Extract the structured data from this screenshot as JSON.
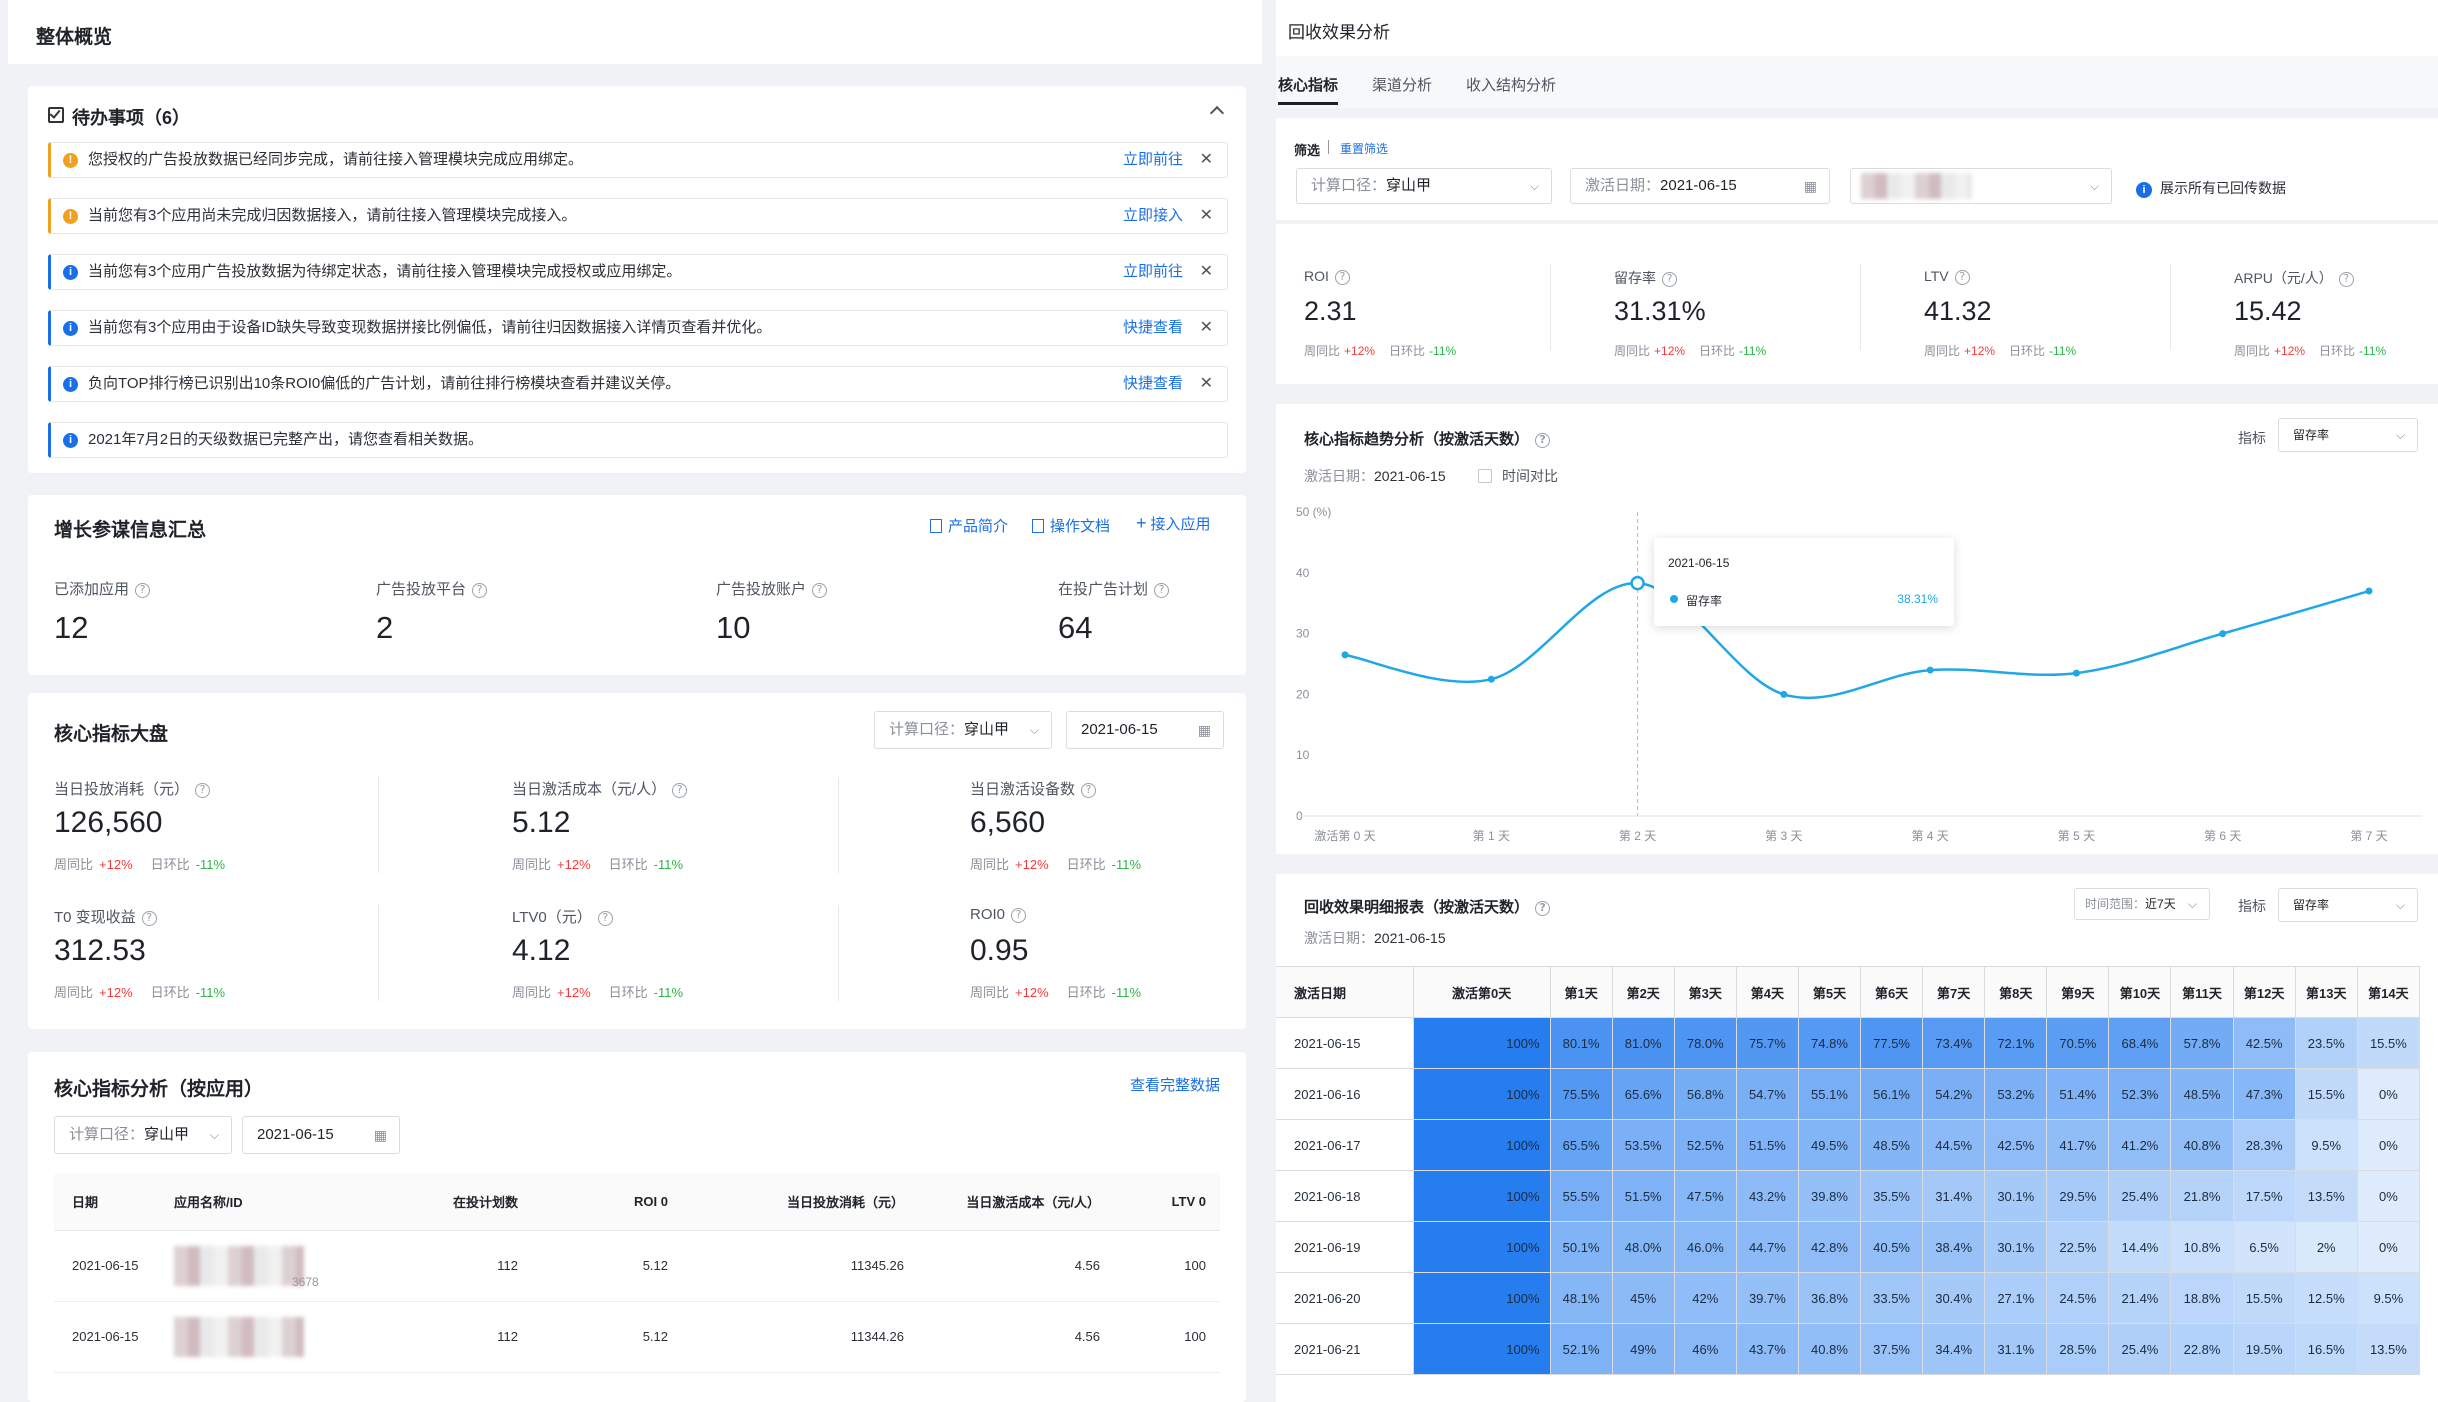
{
  "left": {
    "header_title": "整体概览",
    "todo": {
      "title": "待办事项（6）",
      "items": [
        {
          "level": "warning",
          "text": "您授权的广告投放数据已经同步完成，请前往接入管理模块完成应用绑定。",
          "action": "立即前往"
        },
        {
          "level": "warning",
          "text": "当前您有3个应用尚未完成归因数据接入，请前往接入管理模块完成接入。",
          "action": "立即接入"
        },
        {
          "level": "info",
          "text": "当前您有3个应用广告投放数据为待绑定状态，请前往接入管理模块完成授权或应用绑定。",
          "action": "立即前往"
        },
        {
          "level": "info",
          "text": "当前您有3个应用由于设备ID缺失导致变现数据拼接比例偏低，请前往归因数据接入详情页查看并优化。",
          "action": "快捷查看"
        },
        {
          "level": "info",
          "text": "负向TOP排行榜已识别出10条ROI0偏低的广告计划，请前往排行榜模块查看并建议关停。",
          "action": "快捷查看"
        },
        {
          "level": "info",
          "text": "2021年7月2日的天级数据已完整产出，请您查看相关数据。",
          "action": ""
        }
      ]
    },
    "summary": {
      "title": "增长参谋信息汇总",
      "links": [
        "产品简介",
        "操作文档",
        "接入应用"
      ],
      "stats": [
        {
          "label": "已添加应用",
          "value": "12"
        },
        {
          "label": "广告投放平台",
          "value": "2"
        },
        {
          "label": "广告投放账户",
          "value": "10"
        },
        {
          "label": "在投广告计划",
          "value": "64"
        }
      ]
    },
    "core": {
      "title": "核心指标大盘",
      "calc_label": "计算口径：",
      "calc_value": "穿山甲",
      "date": "2021-06-15",
      "wow": "周同比",
      "dod": "日环比",
      "metrics": [
        {
          "label": "当日投放消耗（元）",
          "value": "126,560",
          "wow": "+12%",
          "dod": "-11%"
        },
        {
          "label": "当日激活成本（元/人）",
          "value": "5.12",
          "wow": "+12%",
          "dod": "-11%"
        },
        {
          "label": "当日激活设备数",
          "value": "6,560",
          "wow": "+12%",
          "dod": "-11%"
        },
        {
          "label": "T0 变现收益",
          "value": "312.53",
          "wow": "+12%",
          "dod": "-11%"
        },
        {
          "label": "LTV0（元）",
          "value": "4.12",
          "wow": "+12%",
          "dod": "-11%"
        },
        {
          "label": "ROI0",
          "value": "0.95",
          "wow": "+12%",
          "dod": "-11%"
        }
      ]
    },
    "analysis": {
      "title": "核心指标分析（按应用）",
      "link": "查看完整数据",
      "calc_label": "计算口径：",
      "calc_value": "穿山甲",
      "date": "2021-06-15",
      "columns": [
        "日期",
        "应用名称/ID",
        "在投计划数",
        "ROI 0",
        "当日投放消耗（元）",
        "当日激活成本（元/人）",
        "LTV 0"
      ],
      "rows": [
        [
          "2021-06-15",
          "",
          "112",
          "5.12",
          "11345.26",
          "4.56",
          "100"
        ],
        [
          "2021-06-15",
          "",
          "112",
          "5.12",
          "11344.26",
          "4.56",
          "100"
        ]
      ],
      "id_fragment": "3678"
    }
  },
  "right": {
    "header_title": "回收效果分析",
    "tabs": [
      "核心指标",
      "渠道分析",
      "收入结构分析"
    ],
    "filter": {
      "label": "筛选",
      "reset": "重置筛选",
      "calc_label": "计算口径：",
      "calc_value": "穿山甲",
      "date_label": "激活日期：",
      "date_value": "2021-06-15",
      "checkbox_label": "展示所有已回传数据"
    },
    "kpis": [
      {
        "label": "ROI",
        "value": "2.31",
        "wow": "+12%",
        "dod": "-11%"
      },
      {
        "label": "留存率",
        "value": "31.31%",
        "wow": "+12%",
        "dod": "-11%"
      },
      {
        "label": "LTV",
        "value": "41.32",
        "wow": "+12%",
        "dod": "-11%"
      },
      {
        "label": "ARPU（元/人）",
        "value": "15.42",
        "wow": "+12%",
        "dod": "-11%"
      }
    ],
    "trend": {
      "title": "核心指标趋势分析（按激活天数）",
      "metric_label": "指标",
      "metric_value": "留存率",
      "date_label": "激活日期：",
      "date_value": "2021-06-15",
      "compare_label": "时间对比",
      "tooltip_date": "2021-06-15",
      "tooltip_series": "留存率",
      "tooltip_value": "38.31%"
    },
    "table": {
      "title": "回收效果明细报表（按激活天数）",
      "range_label": "时间范围：",
      "range_value": "近7天",
      "metric_label": "指标",
      "metric_value": "留存率",
      "date_label": "激活日期：",
      "date_value": "2021-06-15",
      "columns": [
        "激活日期",
        "激活第0天",
        "第1天",
        "第2天",
        "第3天",
        "第4天",
        "第5天",
        "第6天",
        "第7天",
        "第8天",
        "第9天",
        "第10天",
        "第11天",
        "第12天",
        "第13天",
        "第14天"
      ],
      "rows": [
        [
          "2021-06-15",
          "100%",
          "80.1%",
          "81.0%",
          "78.0%",
          "75.7%",
          "74.8%",
          "77.5%",
          "73.4%",
          "72.1%",
          "70.5%",
          "68.4%",
          "57.8%",
          "42.5%",
          "23.5%",
          "15.5%"
        ],
        [
          "2021-06-16",
          "100%",
          "75.5%",
          "65.6%",
          "56.8%",
          "54.7%",
          "55.1%",
          "56.1%",
          "54.2%",
          "53.2%",
          "51.4%",
          "52.3%",
          "48.5%",
          "47.3%",
          "15.5%",
          "0%"
        ],
        [
          "2021-06-17",
          "100%",
          "65.5%",
          "53.5%",
          "52.5%",
          "51.5%",
          "49.5%",
          "48.5%",
          "44.5%",
          "42.5%",
          "41.7%",
          "41.2%",
          "40.8%",
          "28.3%",
          "9.5%",
          "0%"
        ],
        [
          "2021-06-18",
          "100%",
          "55.5%",
          "51.5%",
          "47.5%",
          "43.2%",
          "39.8%",
          "35.5%",
          "31.4%",
          "30.1%",
          "29.5%",
          "25.4%",
          "21.8%",
          "17.5%",
          "13.5%",
          "0%"
        ],
        [
          "2021-06-19",
          "100%",
          "50.1%",
          "48.0%",
          "46.0%",
          "44.7%",
          "42.8%",
          "40.5%",
          "38.4%",
          "30.1%",
          "22.5%",
          "14.4%",
          "10.8%",
          "6.5%",
          "2%",
          "0%"
        ],
        [
          "2021-06-20",
          "100%",
          "48.1%",
          "45%",
          "42%",
          "39.7%",
          "36.8%",
          "33.5%",
          "30.4%",
          "27.1%",
          "24.5%",
          "21.4%",
          "18.8%",
          "15.5%",
          "12.5%",
          "9.5%"
        ],
        [
          "2021-06-21",
          "100%",
          "52.1%",
          "49%",
          "46%",
          "43.7%",
          "40.8%",
          "37.5%",
          "34.4%",
          "31.1%",
          "28.5%",
          "25.4%",
          "22.8%",
          "19.5%",
          "16.5%",
          "13.5%"
        ]
      ]
    }
  },
  "chart_data": {
    "type": "line",
    "x": [
      "激活第 0 天",
      "第 1 天",
      "第 2 天",
      "第 3 天",
      "第 4 天",
      "第 5 天",
      "第 6 天",
      "第 7 天"
    ],
    "series": [
      {
        "name": "留存率",
        "values": [
          26.5,
          22.5,
          38.3,
          20,
          24,
          23.5,
          30,
          37
        ]
      }
    ],
    "yticks": [
      "0",
      "10",
      "20",
      "30",
      "40",
      "50 (%)"
    ],
    "ylim": [
      0,
      50
    ],
    "color": "#1fa7e6"
  }
}
